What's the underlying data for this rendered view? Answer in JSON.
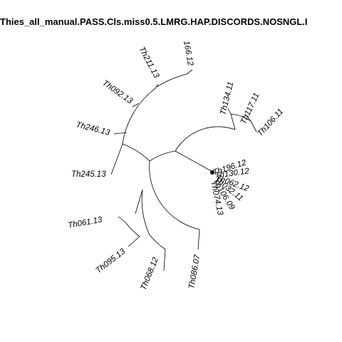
{
  "title": "Thies_all_manual.PASS.Cls.miss0.5.LMRG.HAP.DISCORDS.NOSNGL.I",
  "tips": {
    "t166": "166.12",
    "t211": "Th211.13",
    "t092": "Th092.13",
    "t246": "Th246.13",
    "t245": "Th245.13",
    "t061": "Th061.13",
    "t095": "Th095.13",
    "t068": "Th068.12",
    "t086": "Th086.07",
    "t134": "Th134.11",
    "t117": "Th117.11",
    "t106_11": "Th106.11",
    "t196": "Th196.12",
    "t130": "Th130.12",
    "t062": "Th062.12",
    "t032": "Th032.11",
    "t106_09": "Th106.09",
    "t074": "Th074.13"
  },
  "colors": {
    "ink": "#000000",
    "background": "#ffffff"
  }
}
